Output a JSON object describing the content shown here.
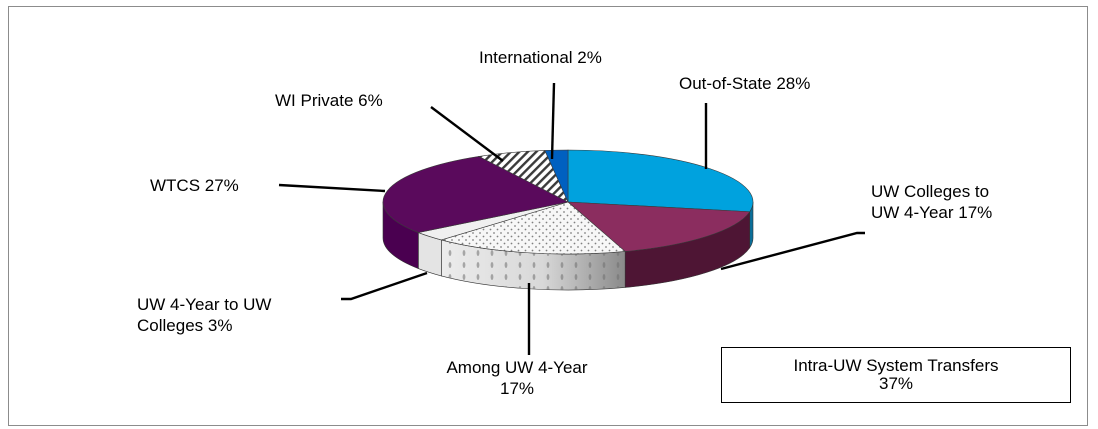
{
  "chart_data": {
    "type": "pie",
    "three_d": true,
    "title": "",
    "legend": "none",
    "slices": [
      {
        "label": "Out-of-State 28%",
        "value": 28,
        "color": "#00a2de",
        "side": "#0a6f9a",
        "pattern": "solid"
      },
      {
        "label": "UW Colleges to UW 4-Year 17%",
        "label_lines": [
          "UW Colleges to",
          "UW 4-Year 17%"
        ],
        "value": 17,
        "color": "#8b2d5f",
        "side": "#4e1534",
        "pattern": "solid"
      },
      {
        "label": "Among UW 4-Year 17%",
        "label_lines": [
          "Among UW 4-Year",
          "17%"
        ],
        "value": 17,
        "color": "#f2f2f2",
        "side": "#c9c9c9",
        "pattern": "dots"
      },
      {
        "label": "UW 4-Year to UW Colleges 3%",
        "label_lines": [
          "UW 4-Year to UW",
          "Colleges 3%"
        ],
        "value": 3,
        "color": "#f0f0f0",
        "side": "#e4e4e4",
        "pattern": "solid"
      },
      {
        "label": "WTCS 27%",
        "value": 27,
        "color": "#5a0a5c",
        "side": "#4a0050",
        "pattern": "solid"
      },
      {
        "label": "WI Private 6%",
        "value": 6,
        "color": "#ffffff",
        "side": "#666666",
        "pattern": "diagonal"
      },
      {
        "label": "International 2%",
        "value": 2,
        "color": "#0060c0",
        "side": "#003f86",
        "pattern": "solid"
      }
    ],
    "callout": {
      "lines": [
        "Intra-UW System Transfers",
        "37%"
      ]
    }
  }
}
